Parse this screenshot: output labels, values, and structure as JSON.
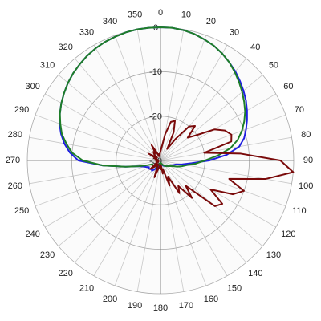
{
  "chart_data": {
    "type": "polar",
    "theta": [
      0,
      5,
      10,
      15,
      20,
      25,
      30,
      35,
      40,
      45,
      50,
      55,
      60,
      65,
      70,
      75,
      80,
      85,
      90,
      95,
      100,
      105,
      110,
      115,
      120,
      125,
      130,
      135,
      140,
      145,
      150,
      155,
      160,
      165,
      170,
      175,
      180,
      185,
      190,
      195,
      200,
      205,
      210,
      215,
      220,
      225,
      230,
      235,
      240,
      245,
      250,
      255,
      260,
      265,
      270,
      275,
      280,
      285,
      290,
      295,
      300,
      305,
      310,
      315,
      320,
      325,
      330,
      335,
      340,
      345,
      350,
      355
    ],
    "angle_ticks": [
      0,
      10,
      20,
      30,
      40,
      50,
      60,
      70,
      80,
      90,
      100,
      110,
      120,
      130,
      140,
      150,
      160,
      170,
      180,
      190,
      200,
      210,
      220,
      230,
      240,
      250,
      260,
      270,
      280,
      290,
      300,
      310,
      320,
      330,
      340,
      350
    ],
    "rlim": [
      -30,
      0
    ],
    "rticks": [
      0,
      -10,
      -20,
      -30
    ],
    "grid": true,
    "series": [
      {
        "color": "#1f1fe0",
        "values": [
          0,
          0,
          -0.2,
          -0.5,
          -1,
          -1.5,
          -2.2,
          -3,
          -3.8,
          -4.7,
          -5.6,
          -6.5,
          -7.5,
          -8.5,
          -9.5,
          -10.5,
          -12,
          -15,
          -19,
          -23,
          -25,
          -26.5,
          -27,
          -27.5,
          -27.8,
          -28,
          -28,
          -28.2,
          -28.4,
          -28.5,
          -28.6,
          -28.8,
          -29,
          -29,
          -29.2,
          -29.3,
          -29.4,
          -29.3,
          -29,
          -28.8,
          -28.5,
          -28.2,
          -28,
          -27.5,
          -27,
          -27.2,
          -27,
          -26.8,
          -27,
          -26.5,
          -26,
          -25,
          -22,
          -17,
          -11.5,
          -9.5,
          -8,
          -6.8,
          -5.8,
          -5,
          -4.2,
          -3.5,
          -2.8,
          -2.2,
          -1.7,
          -1.2,
          -0.8,
          -0.5,
          -0.3,
          -0.1,
          0,
          0
        ]
      },
      {
        "color": "#1e7e28",
        "values": [
          0,
          0,
          -0.2,
          -0.5,
          -1,
          -1.5,
          -2.2,
          -3,
          -4,
          -5,
          -6,
          -7,
          -8,
          -9.2,
          -10.5,
          -12,
          -14,
          -17,
          -20,
          -22,
          -24,
          -25,
          -26,
          -27,
          -27.5,
          -27.8,
          -28,
          -28.2,
          -28.4,
          -28.6,
          -28.8,
          -29,
          -29.2,
          -29.3,
          -29.4,
          -29.5,
          -29.5,
          -29.4,
          -29.3,
          -29.2,
          -29,
          -28.8,
          -28.6,
          -28.4,
          -28.2,
          -28,
          -28,
          -28,
          -28,
          -28,
          -27,
          -25,
          -22,
          -17,
          -12.5,
          -10,
          -8.5,
          -7,
          -6,
          -5,
          -4.2,
          -3.5,
          -2.8,
          -2.2,
          -1.7,
          -1.2,
          -0.8,
          -0.5,
          -0.3,
          -0.1,
          0,
          0
        ]
      },
      {
        "color": "#7a0a0a",
        "values": [
          -28,
          -27,
          -24,
          -21,
          -20.5,
          -23,
          -27,
          -24,
          -20,
          -19,
          -22,
          -20,
          -16,
          -14,
          -13,
          -13.5,
          -20,
          -12,
          -3,
          0,
          -6,
          -14,
          -10,
          -12,
          -17,
          -13,
          -14,
          -22,
          -19,
          -23,
          -21.5,
          -26,
          -24,
          -28,
          -27,
          -29,
          -28,
          -29,
          -28.5,
          -28,
          -26,
          -28,
          -29,
          -28.5,
          -29,
          -28,
          -27,
          -28.5,
          -29,
          -29.5,
          -29,
          -29.5,
          -29,
          -29.5,
          -29.5,
          -29,
          -29.5,
          -29,
          -28.5,
          -29,
          -27,
          -28.5,
          -29,
          -28,
          -27.5,
          -28,
          -26,
          -28,
          -29,
          -28.5,
          -29,
          -28.5
        ]
      }
    ]
  }
}
